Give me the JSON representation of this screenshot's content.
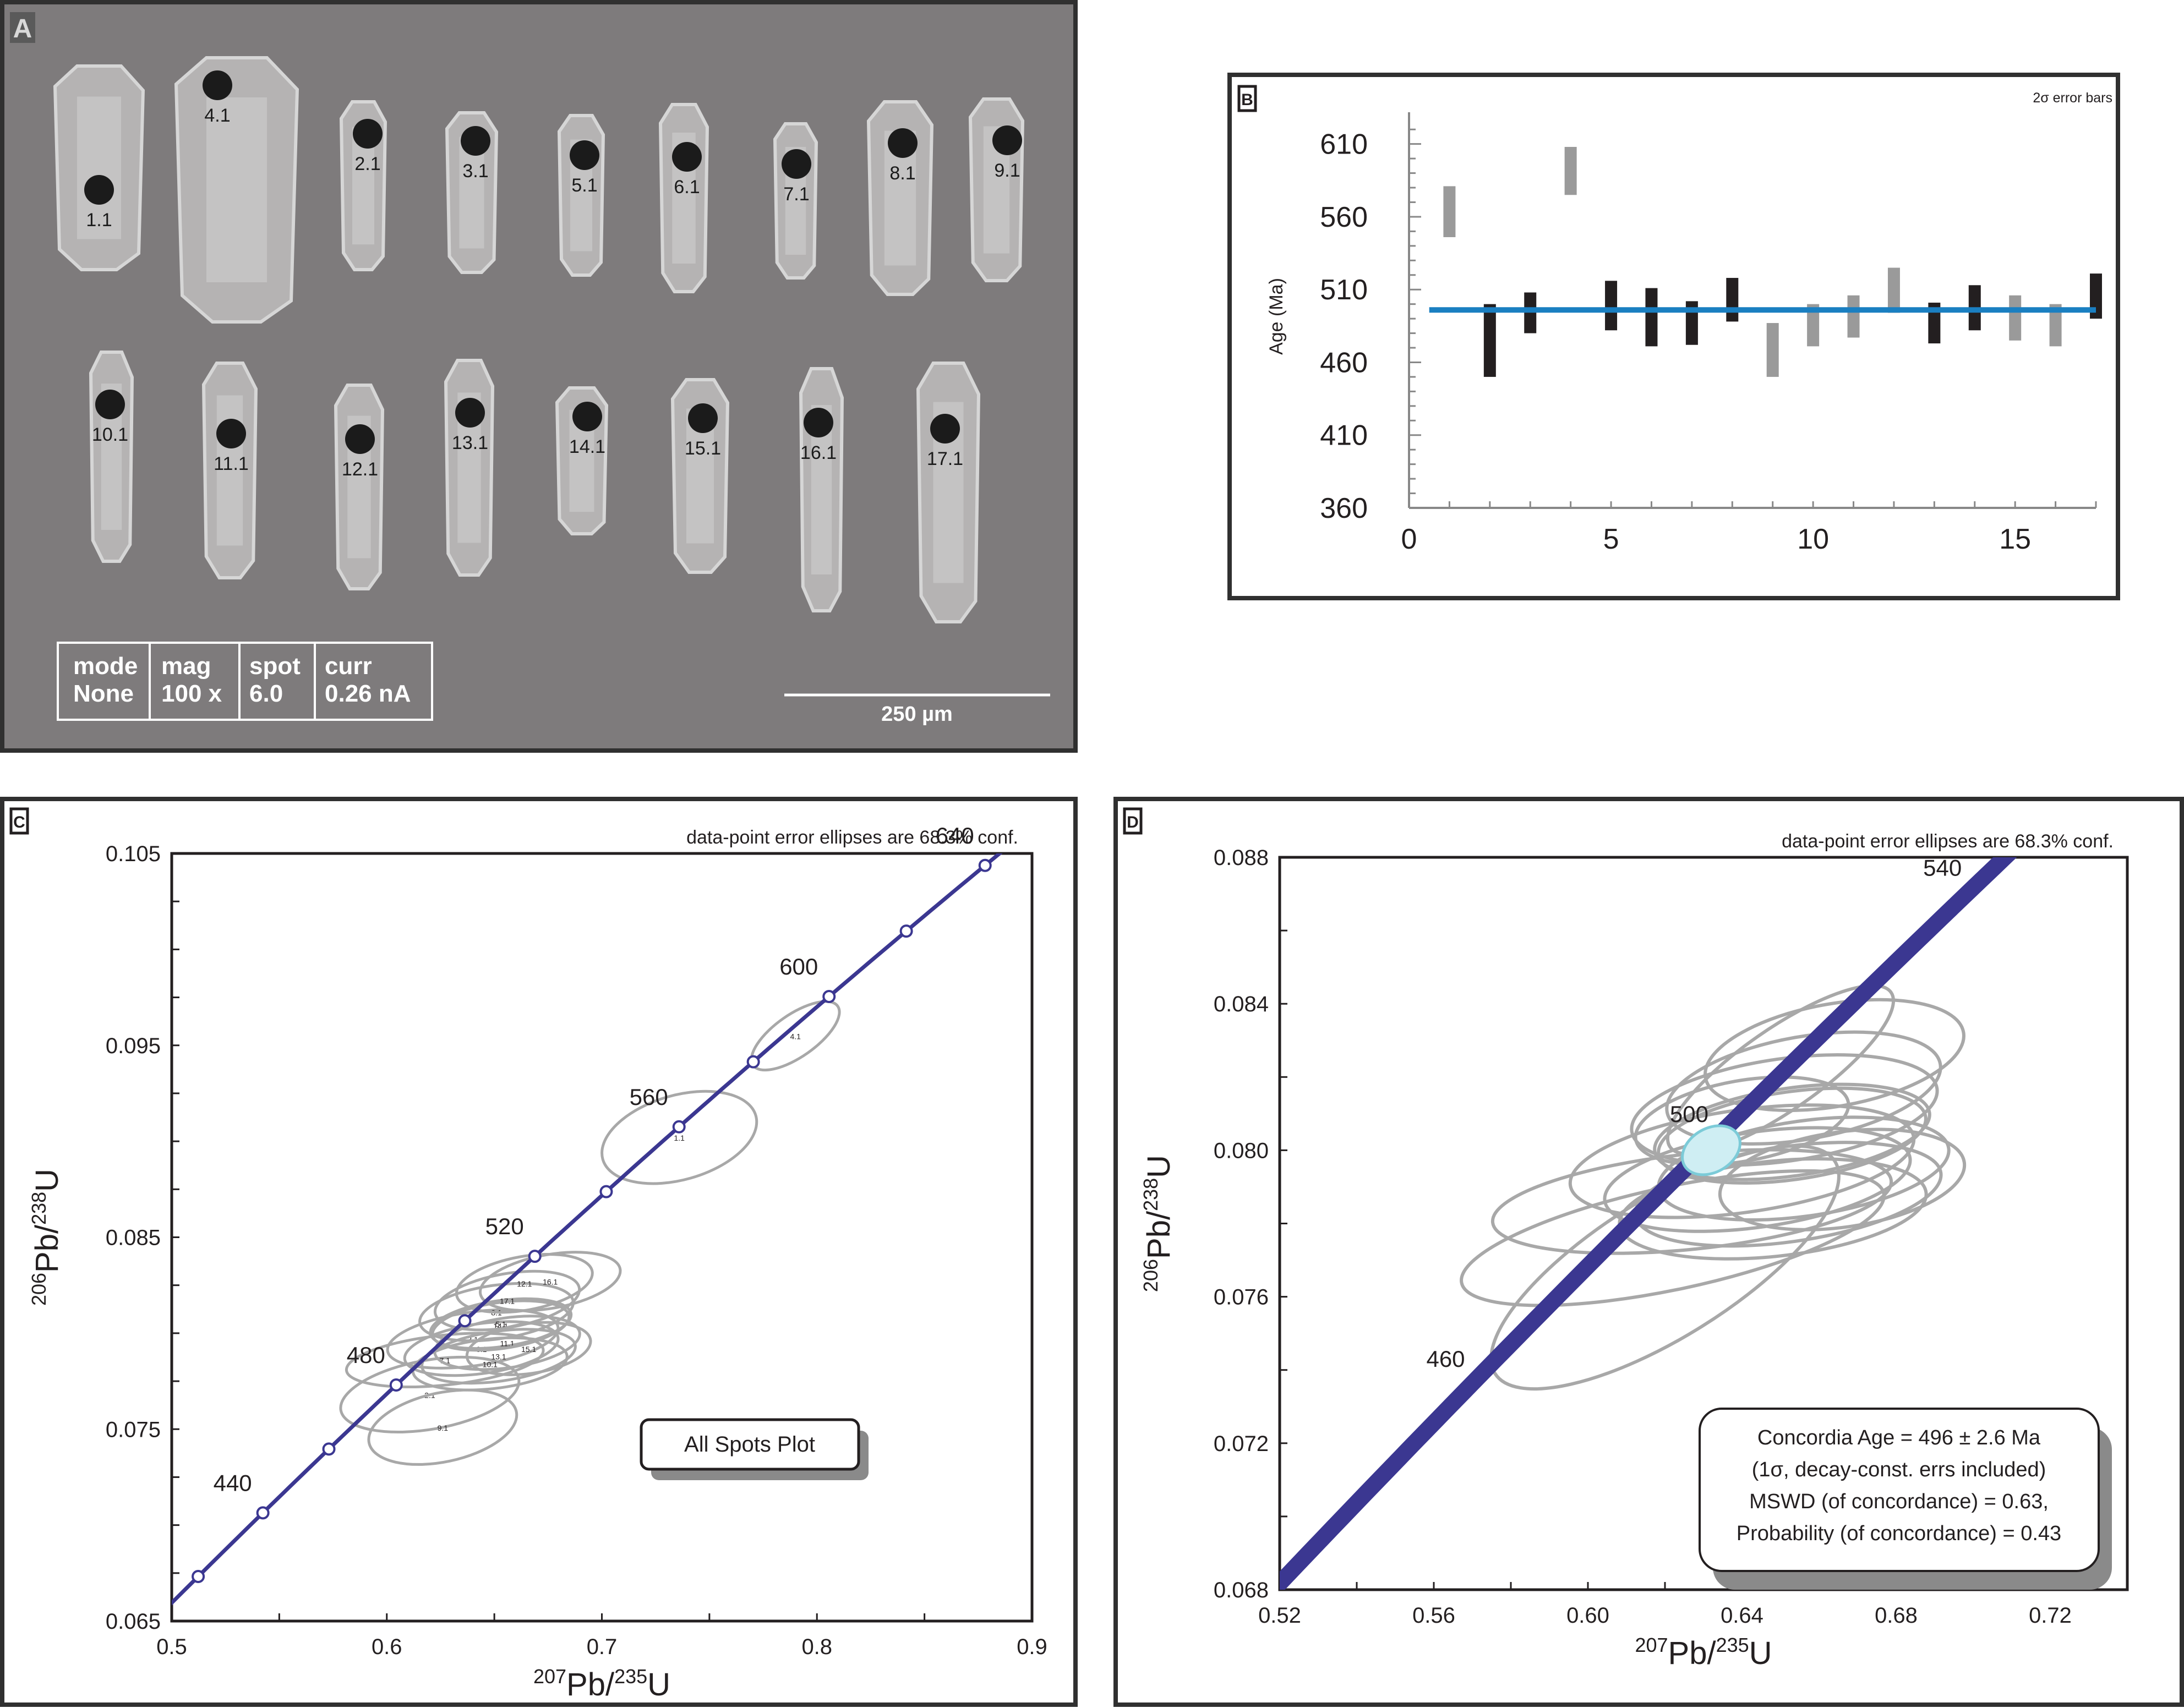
{
  "panel_a": {
    "label": "A",
    "grains": [
      {
        "label": "1.1"
      },
      {
        "label": "4.1"
      },
      {
        "label": "2.1"
      },
      {
        "label": "3.1"
      },
      {
        "label": "5.1"
      },
      {
        "label": "6.1"
      },
      {
        "label": "7.1"
      },
      {
        "label": "8.1"
      },
      {
        "label": "9.1"
      },
      {
        "label": "10.1"
      },
      {
        "label": "11.1"
      },
      {
        "label": "12.1"
      },
      {
        "label": "13.1"
      },
      {
        "label": "14.1"
      },
      {
        "label": "15.1"
      },
      {
        "label": "16.1"
      },
      {
        "label": "17.1"
      }
    ],
    "info_table": {
      "headers": [
        "mode",
        "mag",
        "spot",
        "curr"
      ],
      "values": [
        "None",
        "100 x",
        "6.0",
        "0.26 nA"
      ]
    },
    "scale_bar": "250 µm"
  },
  "chart_data": [
    {
      "panel": "B",
      "type": "bar",
      "subtype": "error-bar",
      "title": "",
      "note": "2σ error bars",
      "ylabel": "Age (Ma)",
      "xlabel": "",
      "xlim": [
        0,
        17
      ],
      "ylim": [
        360,
        625
      ],
      "xticks": [
        "0",
        "5",
        "10",
        "15"
      ],
      "yticks": [
        "610",
        "560",
        "510",
        "460",
        "410",
        "360"
      ],
      "mean_age": 496,
      "mean_line_color": "#1a7fc1",
      "series": [
        {
          "name": "",
          "color": "#231f20",
          "points": [
            {
              "x": 2,
              "low": 450,
              "high": 500
            },
            {
              "x": 3,
              "low": 480,
              "high": 508
            },
            {
              "x": 5,
              "low": 482,
              "high": 516
            },
            {
              "x": 6,
              "low": 471,
              "high": 511
            },
            {
              "x": 7,
              "low": 472,
              "high": 502
            },
            {
              "x": 8,
              "low": 488,
              "high": 518
            },
            {
              "x": 13,
              "low": 473,
              "high": 501
            },
            {
              "x": 14,
              "low": 482,
              "high": 513
            },
            {
              "x": 17,
              "low": 490,
              "high": 521
            }
          ]
        },
        {
          "name": "",
          "color": "#9a9a9a",
          "points": [
            {
              "x": 1,
              "low": 546,
              "high": 581
            },
            {
              "x": 4,
              "low": 575,
              "high": 608
            },
            {
              "x": 9,
              "low": 450,
              "high": 487
            },
            {
              "x": 10,
              "low": 471,
              "high": 500
            },
            {
              "x": 11,
              "low": 477,
              "high": 506
            },
            {
              "x": 12,
              "low": 494,
              "high": 525
            },
            {
              "x": 15,
              "low": 475,
              "high": 506
            },
            {
              "x": 16,
              "low": 471,
              "high": 500
            }
          ]
        }
      ]
    },
    {
      "panel": "C",
      "type": "scatter",
      "subtype": "concordia",
      "note": "data-point error ellipses are 68.3% conf.",
      "xlabel": {
        "sup": "207",
        "base": "Pb/",
        "sup2": "235",
        "end": "U"
      },
      "ylabel": {
        "sup": "206",
        "base": "Pb/",
        "sup2": "238",
        "end": "U"
      },
      "xlim": [
        0.5,
        0.9
      ],
      "ylim": [
        0.065,
        0.105
      ],
      "xticks": [
        "0.5",
        "0.6",
        "0.7",
        "0.8",
        "0.9"
      ],
      "yticks": [
        "0.065",
        "0.075",
        "0.085",
        "0.095",
        "0.105"
      ],
      "age_labels": [
        {
          "text": "440",
          "age": 440
        },
        {
          "text": "480",
          "age": 480
        },
        {
          "text": "520",
          "age": 520
        },
        {
          "text": "560",
          "age": 560
        },
        {
          "text": "600",
          "age": 600
        },
        {
          "text": "640",
          "age": 640
        }
      ],
      "legend_box": "All Spots Plot",
      "ellipses": [
        {
          "label": "1.1",
          "x": 0.736,
          "y": 0.0902,
          "rx": 0.037,
          "ry": 0.0022,
          "rot": -16
        },
        {
          "label": "4.1",
          "x": 0.79,
          "y": 0.0955,
          "rx": 0.024,
          "ry": 0.0011,
          "rot": -35
        },
        {
          "label": "2.1",
          "x": 0.62,
          "y": 0.0768,
          "rx": 0.042,
          "ry": 0.0018,
          "rot": -10
        },
        {
          "label": "9.1",
          "x": 0.626,
          "y": 0.0751,
          "rx": 0.035,
          "ry": 0.0018,
          "rot": -12
        },
        {
          "label": "7.1",
          "x": 0.627,
          "y": 0.0786,
          "rx": 0.046,
          "ry": 0.0013,
          "rot": -6
        },
        {
          "label": "3.1",
          "x": 0.64,
          "y": 0.0797,
          "rx": 0.04,
          "ry": 0.0014,
          "rot": -8
        },
        {
          "label": "6.1",
          "x": 0.644,
          "y": 0.0792,
          "rx": 0.036,
          "ry": 0.0013,
          "rot": -8
        },
        {
          "label": "8.1",
          "x": 0.651,
          "y": 0.0811,
          "rx": 0.036,
          "ry": 0.0014,
          "rot": -8
        },
        {
          "label": "5.1",
          "x": 0.653,
          "y": 0.0805,
          "rx": 0.033,
          "ry": 0.0012,
          "rot": -8
        },
        {
          "label": "10.1",
          "x": 0.648,
          "y": 0.0784,
          "rx": 0.036,
          "ry": 0.0013,
          "rot": -6
        },
        {
          "label": "11.1",
          "x": 0.656,
          "y": 0.0795,
          "rx": 0.034,
          "ry": 0.0013,
          "rot": -8
        },
        {
          "label": "13.1",
          "x": 0.652,
          "y": 0.0788,
          "rx": 0.036,
          "ry": 0.0013,
          "rot": -8
        },
        {
          "label": "14.1",
          "x": 0.653,
          "y": 0.0804,
          "rx": 0.032,
          "ry": 0.0012,
          "rot": -8
        },
        {
          "label": "15.1",
          "x": 0.666,
          "y": 0.0792,
          "rx": 0.029,
          "ry": 0.0013,
          "rot": -8
        },
        {
          "label": "16.1",
          "x": 0.676,
          "y": 0.0827,
          "rx": 0.033,
          "ry": 0.0014,
          "rot": -10
        },
        {
          "label": "12.1",
          "x": 0.664,
          "y": 0.0826,
          "rx": 0.032,
          "ry": 0.0014,
          "rot": -10
        },
        {
          "label": "17.1",
          "x": 0.656,
          "y": 0.0817,
          "rx": 0.034,
          "ry": 0.0014,
          "rot": -10
        }
      ]
    },
    {
      "panel": "D",
      "type": "scatter",
      "subtype": "concordia",
      "note": "data-point error ellipses are 68.3% conf.",
      "xlabel": {
        "sup": "207",
        "base": "Pb/",
        "sup2": "235",
        "end": "U"
      },
      "ylabel": {
        "sup": "206",
        "base": "Pb/",
        "sup2": "238",
        "end": "U"
      },
      "xlim": [
        0.52,
        0.74
      ],
      "ylim": [
        0.068,
        0.088
      ],
      "xticks": [
        "0.52",
        "0.56",
        "0.60",
        "0.64",
        "0.68",
        "0.72"
      ],
      "yticks": [
        "0.068",
        "0.072",
        "0.076",
        "0.080",
        "0.084",
        "0.088"
      ],
      "age_labels": [
        {
          "text": "460",
          "age": 460
        },
        {
          "text": "500",
          "age": 500
        },
        {
          "text": "540",
          "age": 540
        }
      ],
      "concordia_age": {
        "x": 0.632,
        "y": 0.08,
        "rx": 0.008,
        "ry": 0.0006,
        "rot": -30
      },
      "result_lines": [
        "Concordia Age = 496 ± 2.6 Ma",
        "(1σ, decay-const. errs included)",
        "MSWD (of concordance) = 0.63,",
        "Probability (of concordance) = 0.43"
      ],
      "ellipses": [
        {
          "x": 0.62,
          "y": 0.0768,
          "rx": 0.052,
          "ry": 0.0019,
          "rot": -32
        },
        {
          "x": 0.622,
          "y": 0.0776,
          "rx": 0.056,
          "ry": 0.0014,
          "rot": -12
        },
        {
          "x": 0.627,
          "y": 0.0786,
          "rx": 0.052,
          "ry": 0.0013,
          "rot": -6
        },
        {
          "x": 0.64,
          "y": 0.0797,
          "rx": 0.045,
          "ry": 0.0014,
          "rot": -8
        },
        {
          "x": 0.644,
          "y": 0.0792,
          "rx": 0.04,
          "ry": 0.0013,
          "rot": -8
        },
        {
          "x": 0.651,
          "y": 0.0811,
          "rx": 0.04,
          "ry": 0.0014,
          "rot": -8
        },
        {
          "x": 0.653,
          "y": 0.0805,
          "rx": 0.036,
          "ry": 0.0012,
          "rot": -8
        },
        {
          "x": 0.648,
          "y": 0.0784,
          "rx": 0.04,
          "ry": 0.0013,
          "rot": -6
        },
        {
          "x": 0.656,
          "y": 0.0795,
          "rx": 0.038,
          "ry": 0.0013,
          "rot": -8
        },
        {
          "x": 0.652,
          "y": 0.0788,
          "rx": 0.04,
          "ry": 0.0013,
          "rot": -8
        },
        {
          "x": 0.653,
          "y": 0.0804,
          "rx": 0.035,
          "ry": 0.0012,
          "rot": -8
        },
        {
          "x": 0.666,
          "y": 0.0792,
          "rx": 0.032,
          "ry": 0.0013,
          "rot": -8
        },
        {
          "x": 0.65,
          "y": 0.0822,
          "rx": 0.035,
          "ry": 0.0011,
          "rot": -35
        },
        {
          "x": 0.664,
          "y": 0.0826,
          "rx": 0.034,
          "ry": 0.0014,
          "rot": -10
        },
        {
          "x": 0.656,
          "y": 0.0817,
          "rx": 0.036,
          "ry": 0.0014,
          "rot": -10
        },
        {
          "x": 0.64,
          "y": 0.0808,
          "rx": 0.028,
          "ry": 0.0011,
          "rot": -10
        }
      ]
    }
  ]
}
